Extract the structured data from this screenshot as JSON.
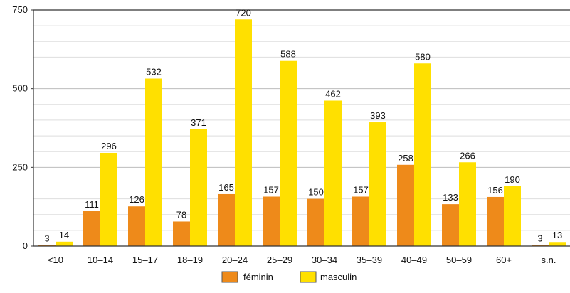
{
  "chart_data": {
    "type": "bar",
    "categories": [
      "<10",
      "10–14",
      "15–17",
      "18–19",
      "20–24",
      "25–29",
      "30–34",
      "35–39",
      "40–49",
      "50–59",
      "60+",
      "s.n."
    ],
    "series": [
      {
        "name": "féminin",
        "color": "#ee8a1a",
        "values": [
          3,
          111,
          126,
          78,
          165,
          157,
          150,
          157,
          258,
          133,
          156,
          3
        ]
      },
      {
        "name": "masculin",
        "color": "#ffe000",
        "values": [
          14,
          296,
          532,
          371,
          720,
          588,
          462,
          393,
          580,
          266,
          190,
          13
        ]
      }
    ],
    "yticks": [
      0,
      250,
      500,
      750
    ],
    "ylim": [
      0,
      750
    ],
    "grid": true,
    "legend_position": "bottom-center",
    "title": "",
    "xlabel": "",
    "ylabel": ""
  }
}
